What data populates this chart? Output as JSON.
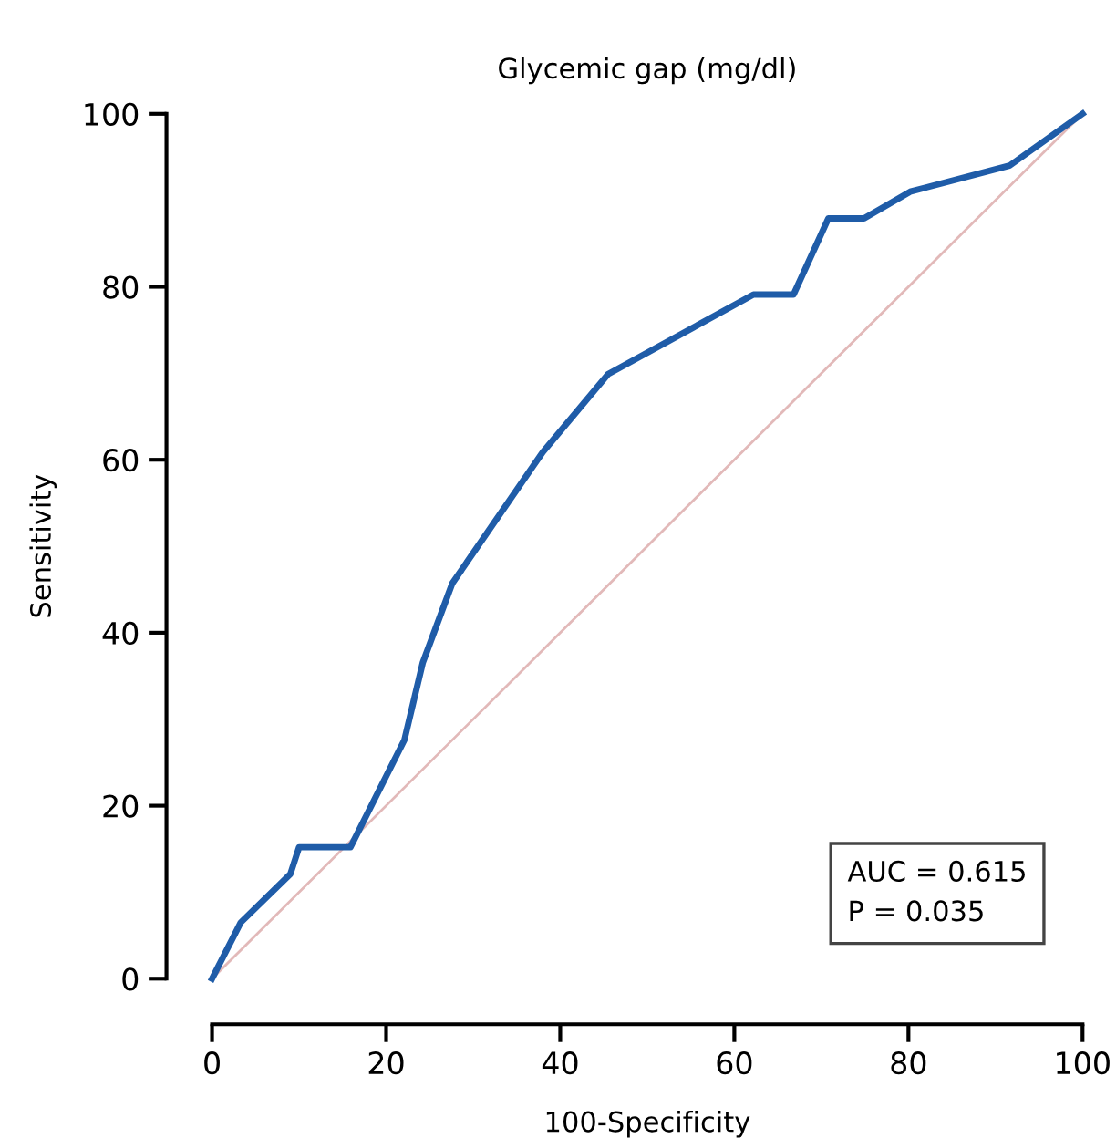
{
  "chart_data": {
    "type": "line",
    "title": "Glycemic gap (mg/dl)",
    "xlabel": "100-Specificity",
    "ylabel": "Sensitivity",
    "series": [
      {
        "color": "#1f5ca8",
        "x": [
          0,
          3.3,
          9.0,
          10.0,
          15.9,
          22.1,
          24.2,
          27.6,
          38.0,
          45.5,
          62.2,
          66.8,
          70.8,
          74.9,
          80.2,
          91.6,
          100
        ],
        "values": [
          0,
          6.5,
          12.1,
          15.2,
          15.2,
          27.6,
          36.5,
          45.7,
          60.9,
          69.9,
          79.1,
          79.1,
          87.9,
          87.9,
          91.0,
          94.0,
          100
        ]
      },
      {
        "color": "#e2b9b9",
        "x": [
          0,
          100
        ],
        "values": [
          0,
          100
        ]
      }
    ],
    "xlim": [
      0,
      100
    ],
    "ylim": [
      0,
      100
    ],
    "xticks": [
      0,
      20,
      40,
      60,
      80,
      100
    ],
    "yticks": [
      0,
      20,
      40,
      60,
      80,
      100
    ],
    "grid": false,
    "legend": false,
    "marker": "none",
    "line_style": "solid",
    "annotations": [
      "AUC = 0.615",
      "P = 0.035"
    ]
  }
}
